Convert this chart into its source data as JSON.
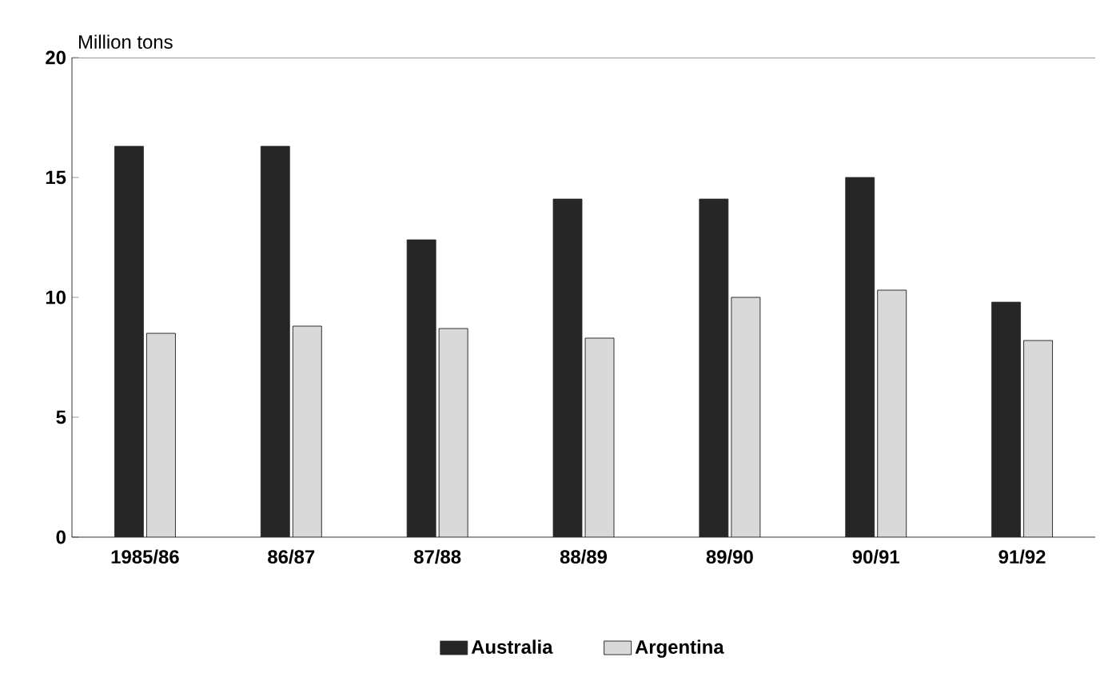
{
  "chart_data": {
    "type": "bar",
    "ylabel": "Million tons",
    "categories": [
      "1985/86",
      "86/87",
      "87/88",
      "88/89",
      "89/90",
      "90/91",
      "91/92"
    ],
    "series": [
      {
        "name": "Australia",
        "color": "#262626",
        "values": [
          16.3,
          16.3,
          12.4,
          14.1,
          14.1,
          15.0,
          9.8
        ]
      },
      {
        "name": "Argentina",
        "color": "#d9d9d9",
        "values": [
          8.5,
          8.8,
          8.7,
          8.3,
          10.0,
          10.3,
          8.2
        ]
      }
    ],
    "ylim": [
      0,
      20
    ],
    "yticks": [
      0,
      5,
      10,
      15,
      20
    ],
    "grid": false,
    "legend": "bottom"
  }
}
